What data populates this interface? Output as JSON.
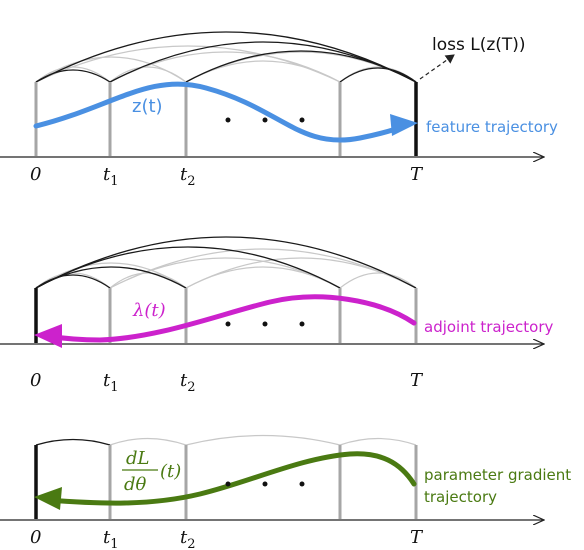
{
  "colors": {
    "feature": "#4a90e2",
    "adjoint": "#cc22cc",
    "gradient": "#4a7a12",
    "axis": "#222222",
    "post": "#a6a6a6",
    "arc_dark": "#1a1a1a",
    "arc_light": "#c8c8c8"
  },
  "ticks": {
    "t0": "0",
    "t1": "t",
    "t1_sub": "1",
    "t2": "t",
    "t2_sub": "2",
    "T": "T"
  },
  "panels": [
    {
      "id": "feature",
      "state_label": "z(t)",
      "trajectory_label": "feature trajectory",
      "loss_label": "loss L(z(T))"
    },
    {
      "id": "adjoint",
      "state_label": "λ(t)",
      "trajectory_label": "adjoint trajectory"
    },
    {
      "id": "gradient",
      "fraction_num": "dL",
      "fraction_den": "dθ",
      "fraction_arg": "(t)",
      "trajectory_label_line1": "parameter gradient",
      "trajectory_label_line2": "trajectory"
    }
  ],
  "ellipsis": "• • •"
}
